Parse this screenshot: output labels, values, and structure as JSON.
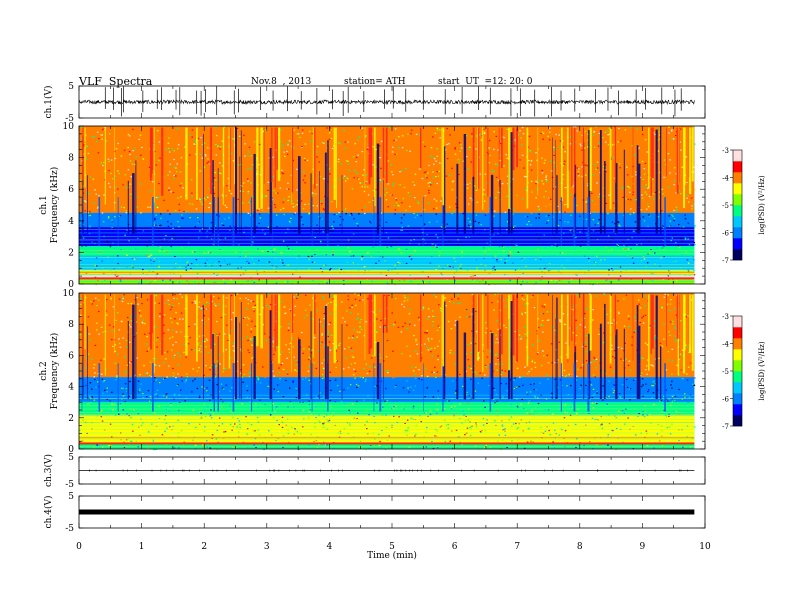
{
  "header": {
    "title": "VLF  Spectra",
    "date": "Nov.8  , 2013",
    "station": "station= ATH",
    "start_label": "start  UT  =",
    "start_time": "12: 20: 0"
  },
  "chart_data": [
    {
      "type": "line",
      "name": "ch1-waveform",
      "ylabel": "ch.1(V)",
      "ylim": [
        -5,
        5
      ],
      "yticks": [
        "5",
        "-5"
      ],
      "baseline": 0,
      "noise_amplitude": 0.6,
      "spikes": [
        0.42,
        0.55,
        0.68,
        0.71,
        1.02,
        1.25,
        1.32,
        1.55,
        1.61,
        1.88,
        1.95,
        2.02,
        2.2,
        2.48,
        2.55,
        2.9,
        3.1,
        3.33,
        3.55,
        3.8,
        4.05,
        4.22,
        4.3,
        4.55,
        4.88,
        5.02,
        5.22,
        5.5,
        5.85,
        6.12,
        6.38,
        6.57,
        6.9,
        7.05,
        7.28,
        7.55,
        7.7,
        7.92,
        8.25,
        8.45,
        8.62,
        8.9,
        9.05,
        9.31,
        9.52,
        9.62
      ]
    },
    {
      "type": "heatmap",
      "name": "ch1-spectrogram",
      "ylabel": "Frequency  (kHz)",
      "channel_label": "ch.1",
      "ylim": [
        0,
        10
      ],
      "yticks": [
        "0",
        "2",
        "4",
        "6",
        "8",
        "10"
      ],
      "colorbar": {
        "label": "log(PSD) (V²/Hz)",
        "range": [
          -7,
          -3
        ],
        "ticks": [
          "-3",
          "-4",
          "-5",
          "-6",
          "-7"
        ],
        "colors": [
          "#000060",
          "#0000ff",
          "#0080ff",
          "#00c8ff",
          "#00ff80",
          "#80ff00",
          "#ffff00",
          "#ff8000",
          "#ff0000",
          "#ffe0e0"
        ]
      },
      "bands": [
        {
          "from": 4.5,
          "to": 10,
          "level": -4.1
        },
        {
          "from": 3.6,
          "to": 4.5,
          "level": -5.9
        },
        {
          "from": 2.4,
          "to": 3.6,
          "level": -6.5
        },
        {
          "from": 1.8,
          "to": 2.4,
          "level": -5.2
        },
        {
          "from": 0.9,
          "to": 1.8,
          "level": -5.7
        },
        {
          "from": 0.55,
          "to": 0.9,
          "level": -4.6
        },
        {
          "from": 0.3,
          "to": 0.55,
          "level": -3.2
        },
        {
          "from": 0,
          "to": 0.3,
          "level": -5.0
        }
      ]
    },
    {
      "type": "heatmap",
      "name": "ch2-spectrogram",
      "ylabel": "Frequency  (kHz)",
      "channel_label": "ch.2",
      "ylim": [
        0,
        10
      ],
      "yticks": [
        "0",
        "2",
        "4",
        "6",
        "8",
        "10"
      ],
      "colorbar": {
        "label": "log(PSD) (V²/Hz)",
        "range": [
          -7,
          -3
        ],
        "ticks": [
          "-3",
          "-4",
          "-5",
          "-6",
          "-7"
        ],
        "colors": [
          "#000060",
          "#0000ff",
          "#0080ff",
          "#00c8ff",
          "#00ff80",
          "#80ff00",
          "#ffff00",
          "#ff8000",
          "#ff0000",
          "#ffe0e0"
        ]
      },
      "bands": [
        {
          "from": 4.6,
          "to": 10,
          "level": -4.2
        },
        {
          "from": 3.0,
          "to": 4.6,
          "level": -5.9
        },
        {
          "from": 2.2,
          "to": 3.0,
          "level": -5.3
        },
        {
          "from": 0.9,
          "to": 2.2,
          "level": -4.6
        },
        {
          "from": 0.3,
          "to": 0.9,
          "level": -4.4
        },
        {
          "from": 0,
          "to": 0.3,
          "level": -5.3
        }
      ]
    },
    {
      "type": "line",
      "name": "ch3-waveform",
      "ylabel": "ch.3(V)",
      "ylim": [
        -5,
        5
      ],
      "yticks": [
        "5",
        "-5"
      ],
      "baseline": 0
    },
    {
      "type": "line",
      "name": "ch4-waveform",
      "ylabel": "ch.4(V)",
      "ylim": [
        -5,
        5
      ],
      "yticks": [
        "5",
        "-5"
      ],
      "baseline": 0
    }
  ],
  "time_axis": {
    "label": "Time  (min)",
    "xlim": [
      0,
      10
    ],
    "ticks": [
      "0",
      "1",
      "2",
      "3",
      "4",
      "5",
      "6",
      "7",
      "8",
      "9",
      "10"
    ],
    "data_end": 9.83
  }
}
